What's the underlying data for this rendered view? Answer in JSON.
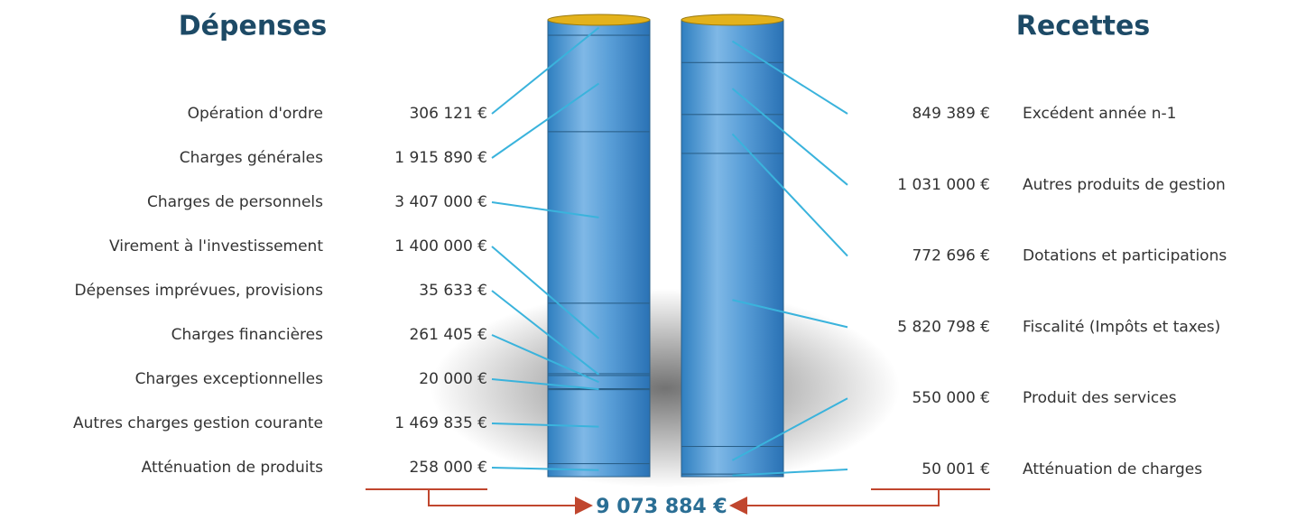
{
  "chart_data": [
    {
      "type": "stacked_column",
      "title": "Dépenses",
      "categories": [
        "Opération d'ordre",
        "Charges générales",
        "Charges de personnels",
        "Virement à l'investissement",
        "Dépenses imprévues, provisions",
        "Charges financières",
        "Charges exceptionnelles",
        "Autres charges gestion courante",
        "Atténuation de produits"
      ],
      "values": [
        306121,
        1915890,
        3407000,
        1400000,
        35633,
        261405,
        20000,
        1469835,
        258000
      ],
      "value_labels": [
        "306 121 €",
        "1 915 890 €",
        "3 407 000 €",
        "1 400 000 €",
        "35 633 €",
        "261 405 €",
        "20 000 €",
        "1 469 835 €",
        "258 000 €"
      ],
      "color": "#4f9fd6"
    },
    {
      "type": "stacked_column",
      "title": "Recettes",
      "categories": [
        "Excédent année n-1",
        "Autres produits de gestion",
        "Dotations et participations",
        "Fiscalité (Impôts et taxes)",
        "Produit des services",
        "Atténuation de charges"
      ],
      "values": [
        849389,
        1031000,
        772696,
        5820798,
        550000,
        50001
      ],
      "value_labels": [
        "849 389 €",
        "1 031 000 €",
        "772 696 €",
        "5 820 798 €",
        "550 000 €",
        "50 001 €"
      ],
      "color": "#4f9fd6"
    }
  ],
  "total": {
    "value": 9073884,
    "label": "9 073 884 €"
  }
}
